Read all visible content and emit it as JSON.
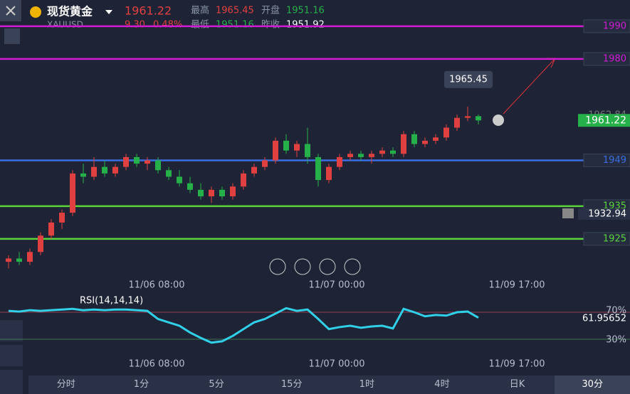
{
  "header": {
    "symbol": "现货黄金",
    "code": "XAUUSD",
    "price": "1961.22",
    "change": "9.30",
    "change_pct": "0.48%",
    "high_label": "最高",
    "high": "1965.45",
    "low_label": "最低",
    "low": "1951.16",
    "open_label": "开盘",
    "open": "1951.16",
    "prev_label": "昨收",
    "prev": "1951.92"
  },
  "time_labels": [
    "11/06 08:00",
    "11/07 00:00",
    "11/09 17:00"
  ],
  "tabs": [
    "分时",
    "1分",
    "5分",
    "15分",
    "1时",
    "4时",
    "日K",
    "30分"
  ],
  "chart_data": [
    {
      "type": "candlestick",
      "ylim": [
        1912.8,
        1991.5
      ],
      "up_color": "#e0403f",
      "down_color": "#26b04a",
      "levels": [
        {
          "value": 1990,
          "color": "#d21ad2"
        },
        {
          "value": 1980,
          "color": "#d21ad2"
        },
        {
          "value": 1949,
          "color": "#3a6ee0"
        },
        {
          "value": 1935,
          "color": "#5bd43b"
        },
        {
          "value": 1925,
          "color": "#5bd43b"
        }
      ],
      "price_labels": [
        "1962.84",
        "1932.94"
      ],
      "current_price": "1961.22",
      "annotation": "1965.45",
      "candles": [
        [
          1918,
          1920,
          1916,
          1919
        ],
        [
          1919,
          1921,
          1917,
          1918
        ],
        [
          1918,
          1922,
          1917,
          1921
        ],
        [
          1921,
          1927,
          1920,
          1926
        ],
        [
          1926,
          1931,
          1925,
          1930
        ],
        [
          1930,
          1934,
          1928,
          1933
        ],
        [
          1933,
          1946,
          1932,
          1945
        ],
        [
          1945,
          1948,
          1942,
          1944
        ],
        [
          1944,
          1950,
          1943,
          1947
        ],
        [
          1947,
          1949,
          1944,
          1945
        ],
        [
          1945,
          1948,
          1944,
          1947
        ],
        [
          1947,
          1951,
          1946,
          1950
        ],
        [
          1950,
          1951,
          1947,
          1948
        ],
        [
          1948,
          1950,
          1946,
          1949
        ],
        [
          1949,
          1950,
          1945,
          1946
        ],
        [
          1946,
          1947,
          1943,
          1944
        ],
        [
          1944,
          1946,
          1941,
          1942
        ],
        [
          1942,
          1944,
          1939,
          1940
        ],
        [
          1940,
          1942,
          1937,
          1938
        ],
        [
          1938,
          1941,
          1936,
          1940
        ],
        [
          1940,
          1941,
          1937,
          1938
        ],
        [
          1938,
          1942,
          1937,
          1941
        ],
        [
          1941,
          1946,
          1940,
          1945
        ],
        [
          1945,
          1948,
          1944,
          1947
        ],
        [
          1947,
          1950,
          1946,
          1949
        ],
        [
          1949,
          1956,
          1948,
          1955
        ],
        [
          1955,
          1957,
          1951,
          1952
        ],
        [
          1952,
          1955,
          1950,
          1954
        ],
        [
          1954,
          1959,
          1948,
          1950
        ],
        [
          1950,
          1951,
          1941,
          1943
        ],
        [
          1943,
          1948,
          1942,
          1947
        ],
        [
          1947,
          1951,
          1946,
          1950
        ],
        [
          1950,
          1952,
          1949,
          1951
        ],
        [
          1951,
          1952,
          1949,
          1950
        ],
        [
          1950,
          1952,
          1948,
          1951
        ],
        [
          1951,
          1953,
          1950,
          1952
        ],
        [
          1952,
          1953,
          1950,
          1951
        ],
        [
          1951,
          1958,
          1950,
          1957
        ],
        [
          1957,
          1958,
          1953,
          1954
        ],
        [
          1954,
          1956,
          1953,
          1955
        ],
        [
          1955,
          1957,
          1954,
          1956
        ],
        [
          1956,
          1960,
          1955,
          1959
        ],
        [
          1959,
          1963,
          1958,
          1962
        ],
        [
          1962,
          1965.45,
          1961,
          1962.5
        ],
        [
          1962.5,
          1963,
          1960,
          1961.22
        ]
      ]
    },
    {
      "type": "line",
      "title": "RSI(14,14,14)",
      "last_label": "61.95652",
      "color": "#2fd0e8",
      "ylim": [
        -20.5,
        95.3
      ],
      "yticks": [
        {
          "value": 30,
          "label": "30%"
        },
        {
          "value": 70,
          "label": "70%"
        }
      ],
      "values": [
        72,
        71,
        73,
        72,
        73,
        74,
        75,
        73,
        74,
        73,
        74,
        74,
        73,
        72,
        60,
        55,
        50,
        40,
        32,
        25,
        27,
        35,
        45,
        55,
        60,
        68,
        76,
        72,
        74,
        60,
        45,
        48,
        50,
        47,
        49,
        50,
        46,
        75,
        70,
        64,
        66,
        65,
        70,
        71,
        61.95652
      ]
    }
  ]
}
